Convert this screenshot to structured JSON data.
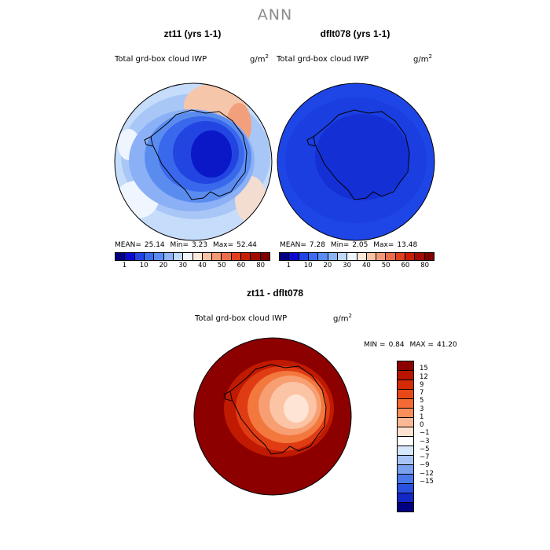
{
  "main_title": "ANN",
  "panels": [
    {
      "title": "zt11 (yrs 1-1)",
      "variable": "Total grd-box cloud IWP",
      "units_base": "g/m",
      "units_exp": "2",
      "stats": {
        "mean_label": "MEAN=",
        "mean": "25.14",
        "min_label": "Min=",
        "min": "3.23",
        "max_label": "Max=",
        "max": "52.44"
      }
    },
    {
      "title": "dflt078 (yrs 1-1)",
      "variable": "Total grd-box cloud IWP",
      "units_base": "g/m",
      "units_exp": "2",
      "stats": {
        "mean_label": "MEAN=",
        "mean": "7.28",
        "min_label": "Min=",
        "min": "2.05",
        "max_label": "Max=",
        "max": "13.48"
      }
    }
  ],
  "abs_colorbar": {
    "labels": [
      "1",
      "10",
      "20",
      "30",
      "40",
      "50",
      "60",
      "80"
    ],
    "colors": [
      "#000080",
      "#0a0ad0",
      "#2244e6",
      "#3a6cf0",
      "#5a8cf5",
      "#8cb3f8",
      "#c0d8fb",
      "#eef5ff",
      "#fde8da",
      "#f9c2a4",
      "#f29a78",
      "#ea6c48",
      "#e0401e",
      "#c81e08",
      "#a00c00",
      "#800000"
    ]
  },
  "diff_panel": {
    "title": "zt11 - dflt078",
    "variable": "Total grd-box cloud IWP",
    "units_base": "g/m",
    "units_exp": "2",
    "minmax": {
      "min_label": "MIN =",
      "min": "0.84",
      "max_label": "MAX =",
      "max": "41.20"
    }
  },
  "diff_colorbar": {
    "labels": [
      "15",
      "12",
      "9",
      "7",
      "5",
      "3",
      "1",
      "0",
      "−1",
      "−3",
      "−5",
      "−7",
      "−9",
      "−12",
      "−15"
    ],
    "colors": [
      "#8c0000",
      "#b81400",
      "#d42a06",
      "#e84818",
      "#f46a34",
      "#f78e5c",
      "#fab896",
      "#fde2d0",
      "#fdfdfd",
      "#d6e6fb",
      "#a8c4f6",
      "#7aa0f0",
      "#4a78ea",
      "#2a50e0",
      "#1428c8",
      "#000080"
    ]
  },
  "icons": {
    "continent_outline": "antarctica-coastline"
  }
}
